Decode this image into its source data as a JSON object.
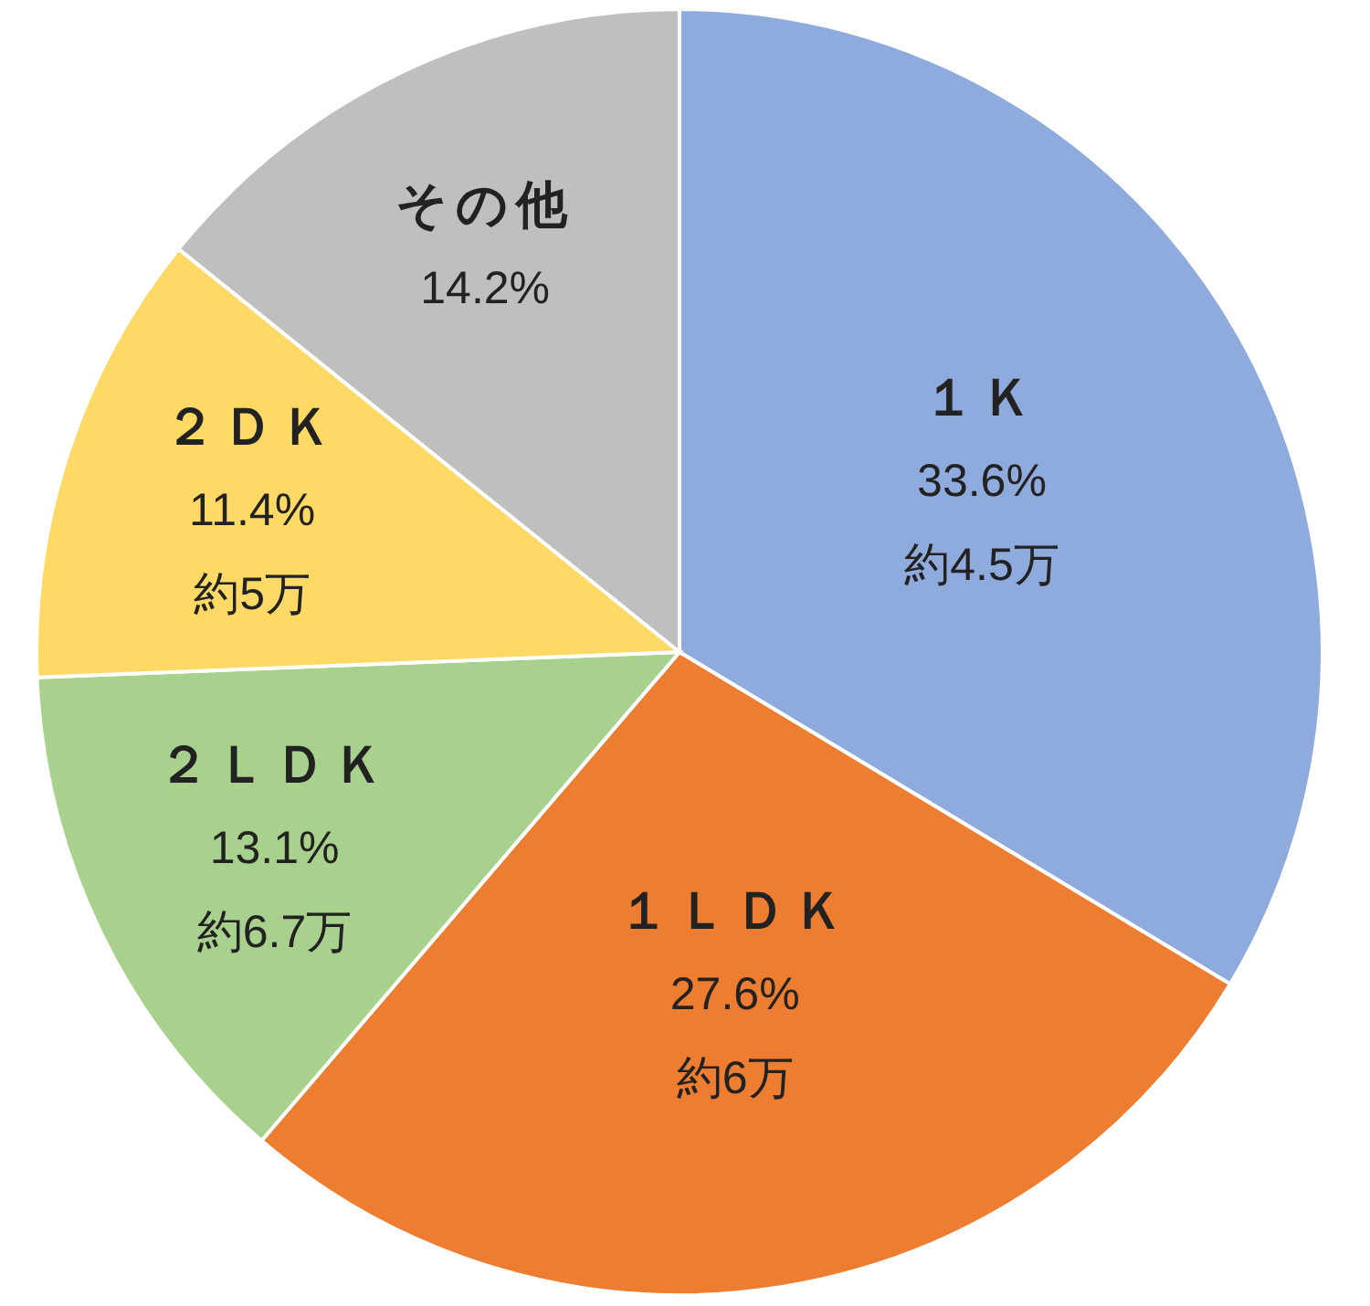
{
  "chart_data": {
    "type": "pie",
    "categories": [
      "１Ｋ",
      "１ＬＤＫ",
      "２ＬＤＫ",
      "２ＤＫ",
      "その他"
    ],
    "values": [
      33.6,
      27.6,
      13.1,
      11.4,
      14.2
    ],
    "colors": [
      "#8faadc",
      "#ed7d31",
      "#a9d18e",
      "#ffd966",
      "#bfbfbf"
    ],
    "value_labels": [
      "33.6%",
      "27.6%",
      "13.1%",
      "11.4%",
      "14.2%"
    ],
    "annotations": [
      {
        "text": "約4.5万",
        "x": "１Ｋ"
      },
      {
        "text": "約6万",
        "x": "１ＬＤＫ"
      },
      {
        "text": "約6.7万",
        "x": "２ＬＤＫ"
      },
      {
        "text": "約5万",
        "x": "２ＤＫ"
      }
    ],
    "legend": false
  }
}
